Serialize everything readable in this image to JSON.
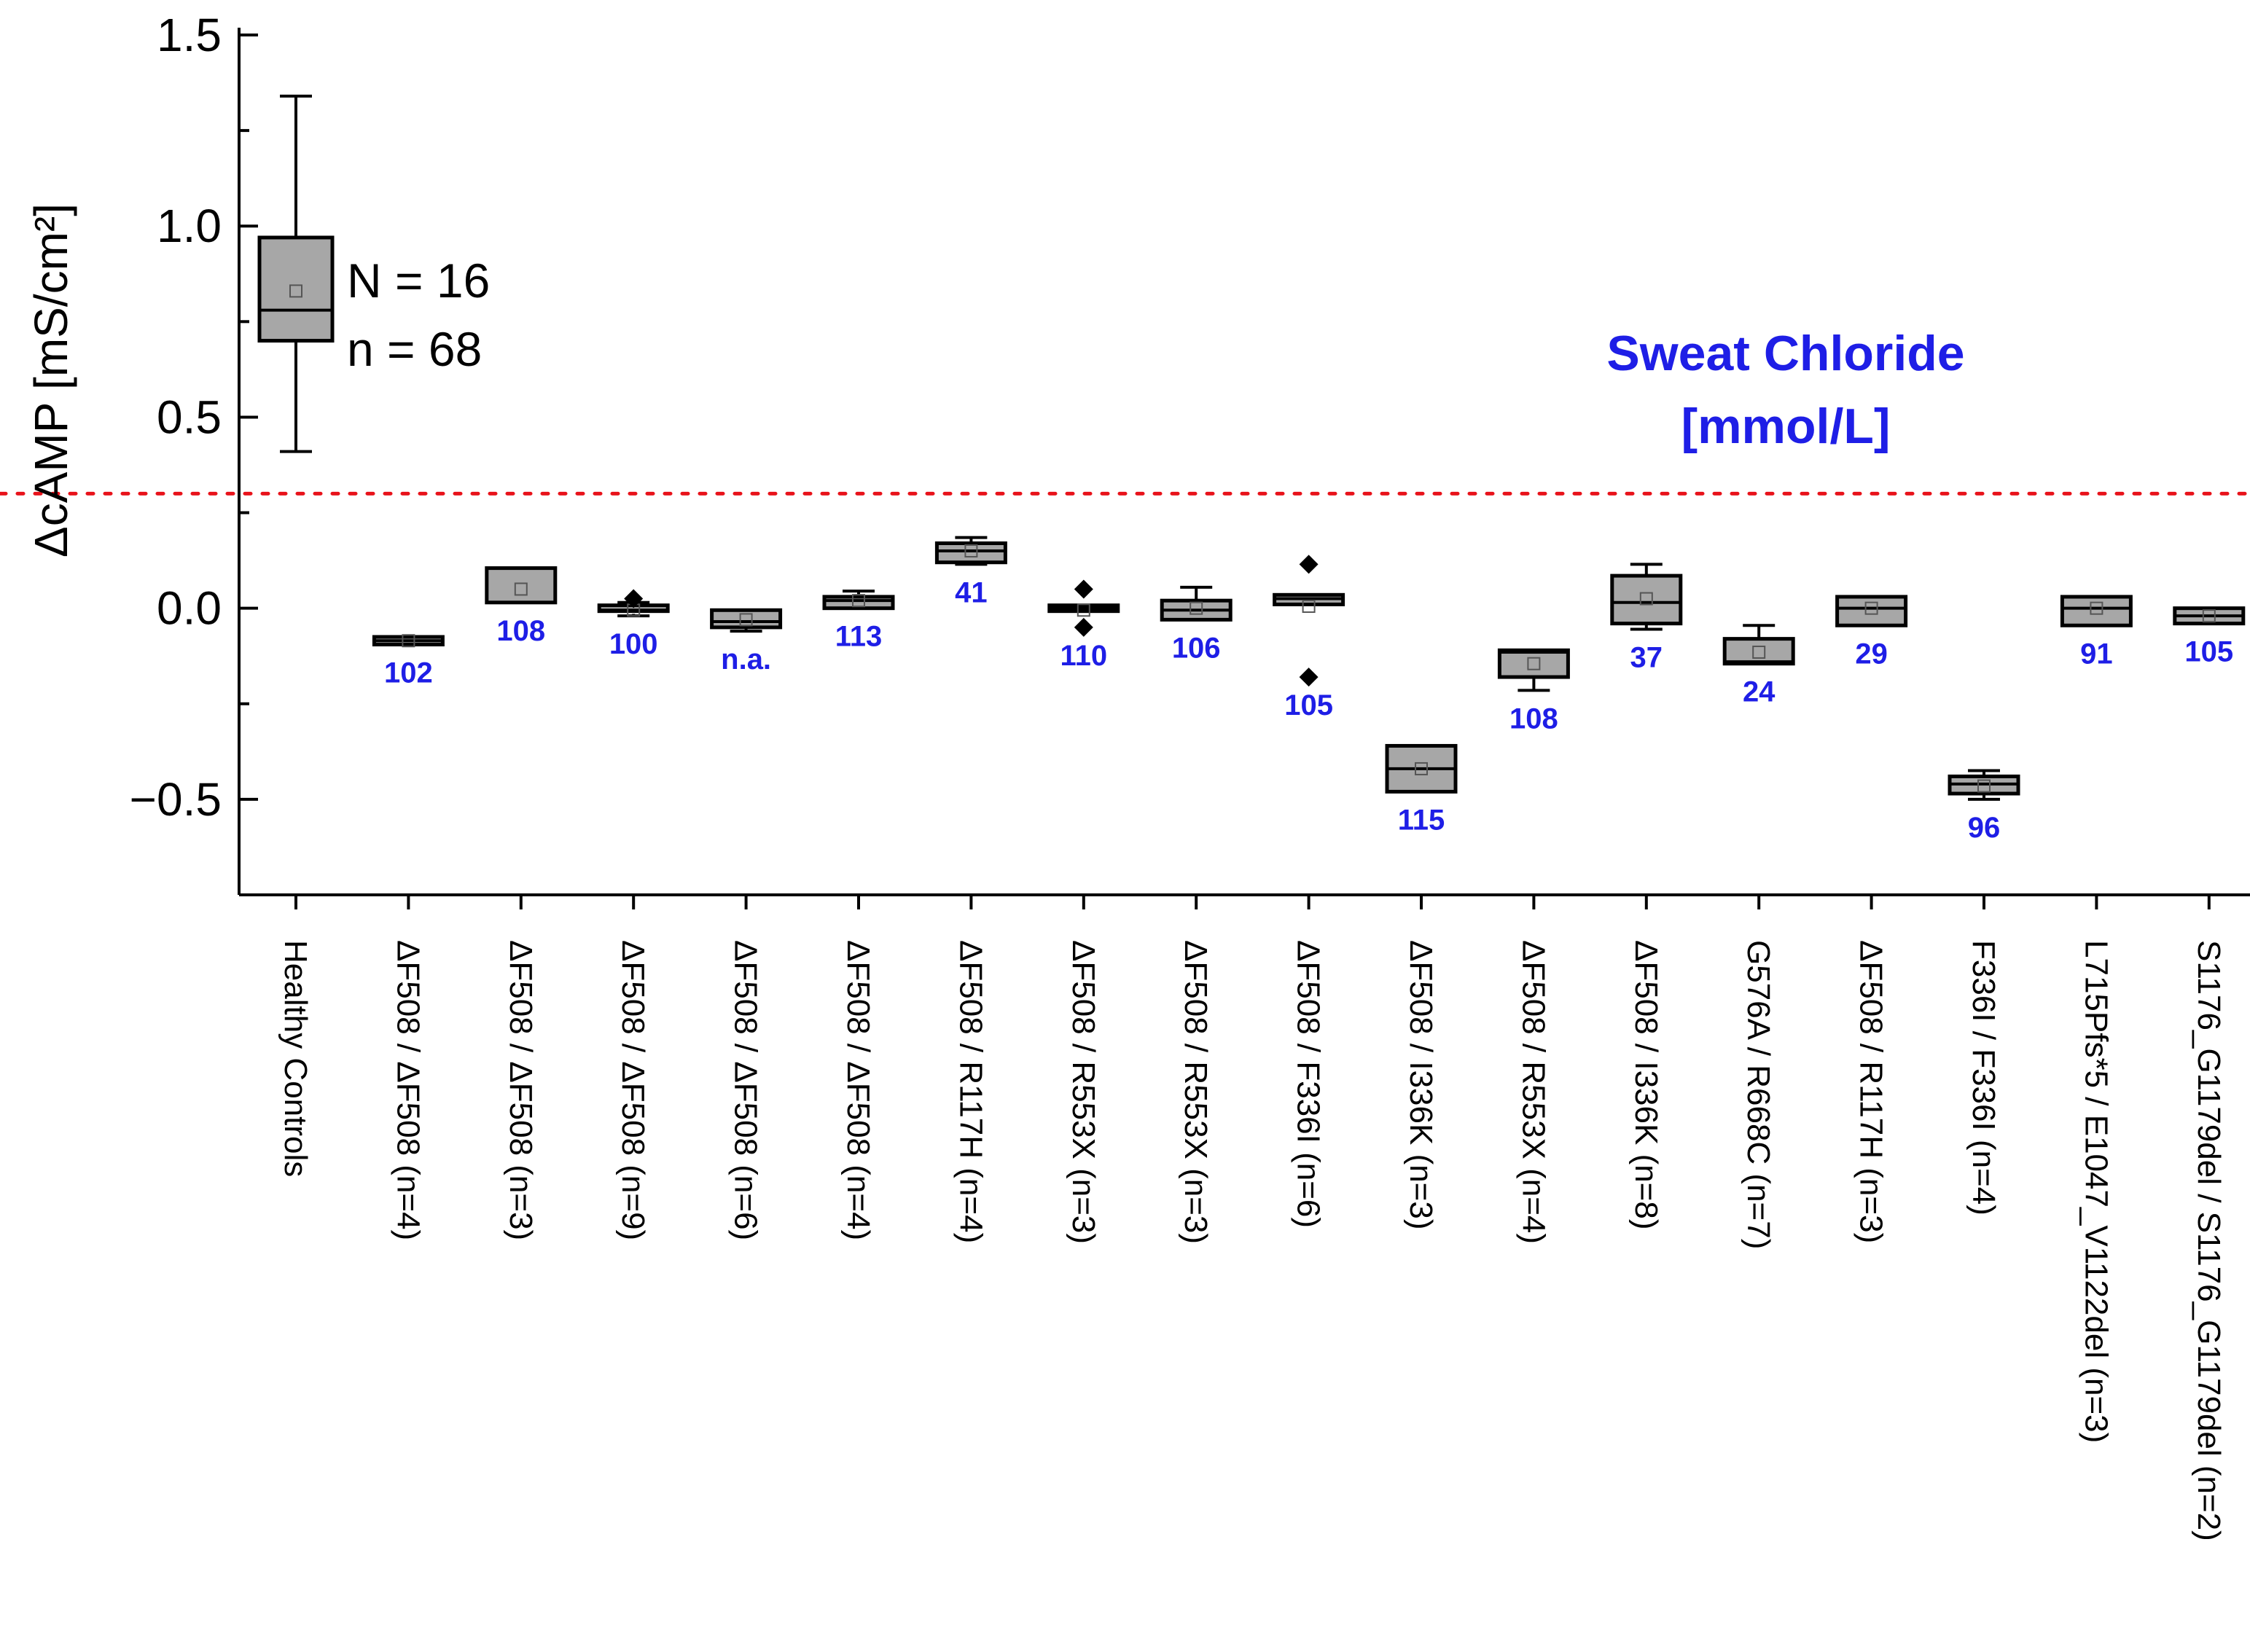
{
  "chart_data": {
    "type": "box",
    "ylabel": "ΔcAMP [mS/cm²]",
    "ylim": [
      -0.75,
      1.5
    ],
    "yticks": [
      {
        "value": 1.5,
        "label": "1.5"
      },
      {
        "value": 1.0,
        "label": "1.0"
      },
      {
        "value": 0.5,
        "label": "0.5"
      },
      {
        "value": 0.0,
        "label": "0.0"
      },
      {
        "value": -0.5,
        "label": "−0.5"
      }
    ],
    "yminor_ticks": [
      1.25,
      0.75,
      0.25,
      -0.25,
      -0.75
    ],
    "threshold": {
      "value": 0.3,
      "color": "#e8131b",
      "style": "dotted"
    },
    "legend_title_line1": "Sweat Chloride",
    "legend_title_line2": "[mmol/L]",
    "annotation_N": "N = 16",
    "annotation_n": "n = 68",
    "box_fill": "#a7a7a7",
    "label_color": "#1e1ee6",
    "groups": [
      {
        "label": "Healthy Controls",
        "whisker_low": 0.41,
        "q1": 0.7,
        "median": 0.78,
        "q3": 0.97,
        "whisker_high": 1.34,
        "mean": 0.83,
        "outliers": [],
        "sweat": null
      },
      {
        "label": "ΔF508 / ΔF508   (n=4)",
        "whisker_low": -0.095,
        "q1": -0.095,
        "median": -0.085,
        "q3": -0.075,
        "whisker_high": -0.075,
        "mean": -0.085,
        "outliers": [],
        "sweat": "102"
      },
      {
        "label": "ΔF508 / ΔF508 (n=3)",
        "whisker_low": 0.015,
        "q1": 0.015,
        "median": 0.105,
        "q3": 0.105,
        "whisker_high": 0.105,
        "mean": 0.05,
        "outliers": [],
        "sweat": "108"
      },
      {
        "label": "ΔF508 / ΔF508 (n=9)",
        "whisker_low": -0.02,
        "q1": -0.015,
        "median": -0.005,
        "q3": 0.0,
        "whisker_high": 0.015,
        "mean": -0.005,
        "outliers": [
          0.025
        ],
        "sweat": "100"
      },
      {
        "label": "ΔF508 / ΔF508 (n=6)",
        "whisker_low": -0.06,
        "q1": -0.05,
        "median": -0.035,
        "q3": -0.005,
        "whisker_high": -0.005,
        "mean": -0.03,
        "outliers": [],
        "sweat": "n.a."
      },
      {
        "label": "ΔF508 / ΔF508 (n=4)",
        "whisker_low": 0.0,
        "q1": 0.0,
        "median": 0.02,
        "q3": 0.03,
        "whisker_high": 0.045,
        "mean": 0.02,
        "outliers": [],
        "sweat": "113"
      },
      {
        "label": "ΔF508 / R117H (n=4)",
        "whisker_low": 0.115,
        "q1": 0.12,
        "median": 0.15,
        "q3": 0.17,
        "whisker_high": 0.185,
        "mean": 0.15,
        "outliers": [],
        "sweat": "41"
      },
      {
        "label": "ΔF508 / R553X (n=3)",
        "whisker_low": -0.01,
        "q1": -0.01,
        "median": 0.0,
        "q3": 0.0,
        "whisker_high": 0.0,
        "mean": -0.005,
        "outliers": [
          0.05,
          -0.05
        ],
        "sweat": "110"
      },
      {
        "label": "ΔF508 / R553X (n=3)",
        "whisker_low": -0.03,
        "q1": -0.03,
        "median": -0.005,
        "q3": 0.02,
        "whisker_high": 0.055,
        "mean": 0.0,
        "outliers": [],
        "sweat": "106"
      },
      {
        "label": "ΔF508 / F336I (n=6)",
        "whisker_low": 0.01,
        "q1": 0.01,
        "median": 0.025,
        "q3": 0.035,
        "whisker_high": 0.035,
        "mean": 0.005,
        "outliers": [
          0.115,
          -0.18
        ],
        "sweat": "105"
      },
      {
        "label": "ΔF508 / I336K (n=3)",
        "whisker_low": -0.48,
        "q1": -0.48,
        "median": -0.42,
        "q3": -0.36,
        "whisker_high": -0.36,
        "mean": -0.42,
        "outliers": [],
        "sweat": "115"
      },
      {
        "label": "ΔF508 / R553X (n=4)",
        "whisker_low": -0.215,
        "q1": -0.18,
        "median": -0.115,
        "q3": -0.11,
        "whisker_high": -0.11,
        "mean": -0.145,
        "outliers": [],
        "sweat": "108"
      },
      {
        "label": "ΔF508 / I336K (n=8)",
        "whisker_low": -0.055,
        "q1": -0.04,
        "median": 0.015,
        "q3": 0.085,
        "whisker_high": 0.115,
        "mean": 0.025,
        "outliers": [],
        "sweat": "37"
      },
      {
        "label": "G576A / R668C (n=7)",
        "whisker_low": -0.145,
        "q1": -0.145,
        "median": -0.14,
        "q3": -0.08,
        "whisker_high": -0.045,
        "mean": -0.115,
        "outliers": [],
        "sweat": "24"
      },
      {
        "label": "ΔF508 / R117H (n=3)",
        "whisker_low": -0.045,
        "q1": -0.045,
        "median": 0.0,
        "q3": 0.03,
        "whisker_high": 0.03,
        "mean": 0.0,
        "outliers": [],
        "sweat": "29"
      },
      {
        "label": "F336I / F336I (n=4)",
        "whisker_low": -0.5,
        "q1": -0.485,
        "median": -0.46,
        "q3": -0.44,
        "whisker_high": -0.425,
        "mean": -0.465,
        "outliers": [],
        "sweat": "96"
      },
      {
        "label": "L715Pfs*5 / E1047_V1122del (n=3)",
        "whisker_low": -0.045,
        "q1": -0.045,
        "median": 0.0,
        "q3": 0.03,
        "whisker_high": 0.03,
        "mean": 0.0,
        "outliers": [],
        "sweat": "91"
      },
      {
        "label": "S1176_G1179del / S1176_G1179del (n=2)",
        "whisker_low": -0.04,
        "q1": -0.04,
        "median": -0.02,
        "q3": 0.0,
        "whisker_high": 0.0,
        "mean": -0.02,
        "outliers": [],
        "sweat": "105"
      }
    ]
  }
}
